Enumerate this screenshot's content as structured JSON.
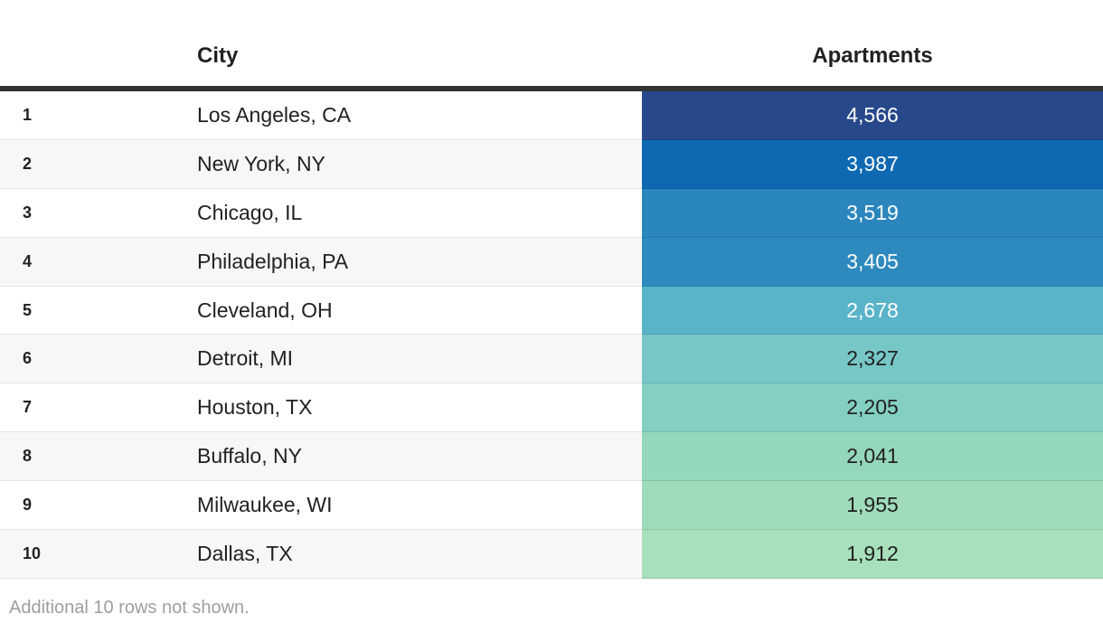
{
  "chart_data": {
    "type": "table",
    "columns": [
      "",
      "City",
      "Apartments"
    ],
    "categories": [
      "Los Angeles, CA",
      "New York, NY",
      "Chicago, IL",
      "Philadelphia, PA",
      "Cleveland, OH",
      "Detroit, MI",
      "Houston, TX",
      "Buffalo, NY",
      "Milwaukee, WI",
      "Dallas, TX"
    ],
    "values": [
      4566,
      3987,
      3519,
      3405,
      2678,
      2327,
      2205,
      2041,
      1955,
      1912
    ],
    "ranks": [
      1,
      2,
      3,
      4,
      5,
      6,
      7,
      8,
      9,
      10
    ],
    "value_cell_colors": [
      "#28488C",
      "#0E69B2",
      "#2C86BE",
      "#2E8ABE",
      "#59B3C9",
      "#77C7C6",
      "#84CFC3",
      "#94D7BC",
      "#A0DCB9",
      "#A7E0BA"
    ],
    "note": "Additional 10 rows not shown.",
    "legend_position": "none",
    "grid": false
  },
  "table": {
    "header": {
      "rank": "",
      "city": "City",
      "apartments": "Apartments"
    },
    "rows": [
      {
        "rank": "1",
        "city": "Los Angeles, CA",
        "value": "4,566",
        "cell_color": "#28488C",
        "value_text_color": "#FFFFFF"
      },
      {
        "rank": "2",
        "city": "New York, NY",
        "value": "3,987",
        "cell_color": "#0E69B2",
        "value_text_color": "#FFFFFF"
      },
      {
        "rank": "3",
        "city": "Chicago, IL",
        "value": "3,519",
        "cell_color": "#2C86BE",
        "value_text_color": "#FFFFFF"
      },
      {
        "rank": "4",
        "city": "Philadelphia, PA",
        "value": "3,405",
        "cell_color": "#2E8ABE",
        "value_text_color": "#FFFFFF"
      },
      {
        "rank": "5",
        "city": "Cleveland, OH",
        "value": "2,678",
        "cell_color": "#59B3C9",
        "value_text_color": "#FFFFFF"
      },
      {
        "rank": "6",
        "city": "Detroit, MI",
        "value": "2,327",
        "cell_color": "#77C7C6",
        "value_text_color": "#212121"
      },
      {
        "rank": "7",
        "city": "Houston, TX",
        "value": "2,205",
        "cell_color": "#84CFC3",
        "value_text_color": "#212121"
      },
      {
        "rank": "8",
        "city": "Buffalo, NY",
        "value": "2,041",
        "cell_color": "#94D7BC",
        "value_text_color": "#212121"
      },
      {
        "rank": "9",
        "city": "Milwaukee, WI",
        "value": "1,955",
        "cell_color": "#A0DCB9",
        "value_text_color": "#212121"
      },
      {
        "rank": "10",
        "city": "Dallas, TX",
        "value": "1,912",
        "cell_color": "#A7E0BA",
        "value_text_color": "#212121"
      }
    ]
  },
  "footer": {
    "note": "Additional 10 rows not shown."
  },
  "colors": {
    "header_border": "#333333",
    "row_separator": "#E4E4E4",
    "zebra_stripe": "#F7F7F7",
    "text_primary": "#212121",
    "footer_text": "#9E9E9E"
  }
}
